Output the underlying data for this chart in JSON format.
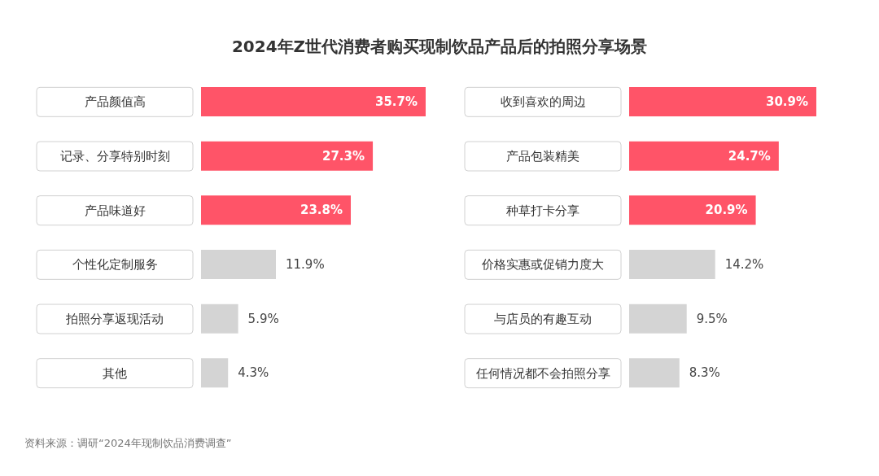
{
  "chart_data": [
    {
      "type": "bar",
      "orientation": "horizontal",
      "title": "2024年Z世代消费者购买现制饮品产品后的拍照分享场景",
      "categories": [
        "产品颜值高",
        "记录、分享特别时刻",
        "产品味道好",
        "个性化定制服务",
        "拍照分享返现活动",
        "其他"
      ],
      "values": [
        35.7,
        27.3,
        23.8,
        11.9,
        5.9,
        4.3
      ],
      "colors": [
        "#ff5468",
        "#ff5468",
        "#ff5468",
        "#d4d4d4",
        "#d4d4d4",
        "#d4d4d4"
      ],
      "value_labels": [
        "35.7%",
        "27.3%",
        "23.8%",
        "11.9%",
        "5.9%",
        "4.3%"
      ],
      "annotations": [
        "资料来源：调研“2024年现制饮品消费调查”"
      ]
    },
    {
      "type": "bar",
      "orientation": "horizontal",
      "categories": [
        "收到喜欢的周边",
        "产品包装精美",
        "种草打卡分享",
        "价格实惠或促销力度大",
        "与店员的有趣互动",
        "任何情况都不会拍照分享"
      ],
      "values": [
        30.9,
        24.7,
        20.9,
        14.2,
        9.5,
        8.3
      ],
      "colors": [
        "#ff5468",
        "#ff5468",
        "#ff5468",
        "#d4d4d4",
        "#d4d4d4",
        "#d4d4d4"
      ],
      "value_labels": [
        "30.9%",
        "24.7%",
        "20.9%",
        "14.2%",
        "9.5%",
        "8.3%"
      ]
    }
  ]
}
